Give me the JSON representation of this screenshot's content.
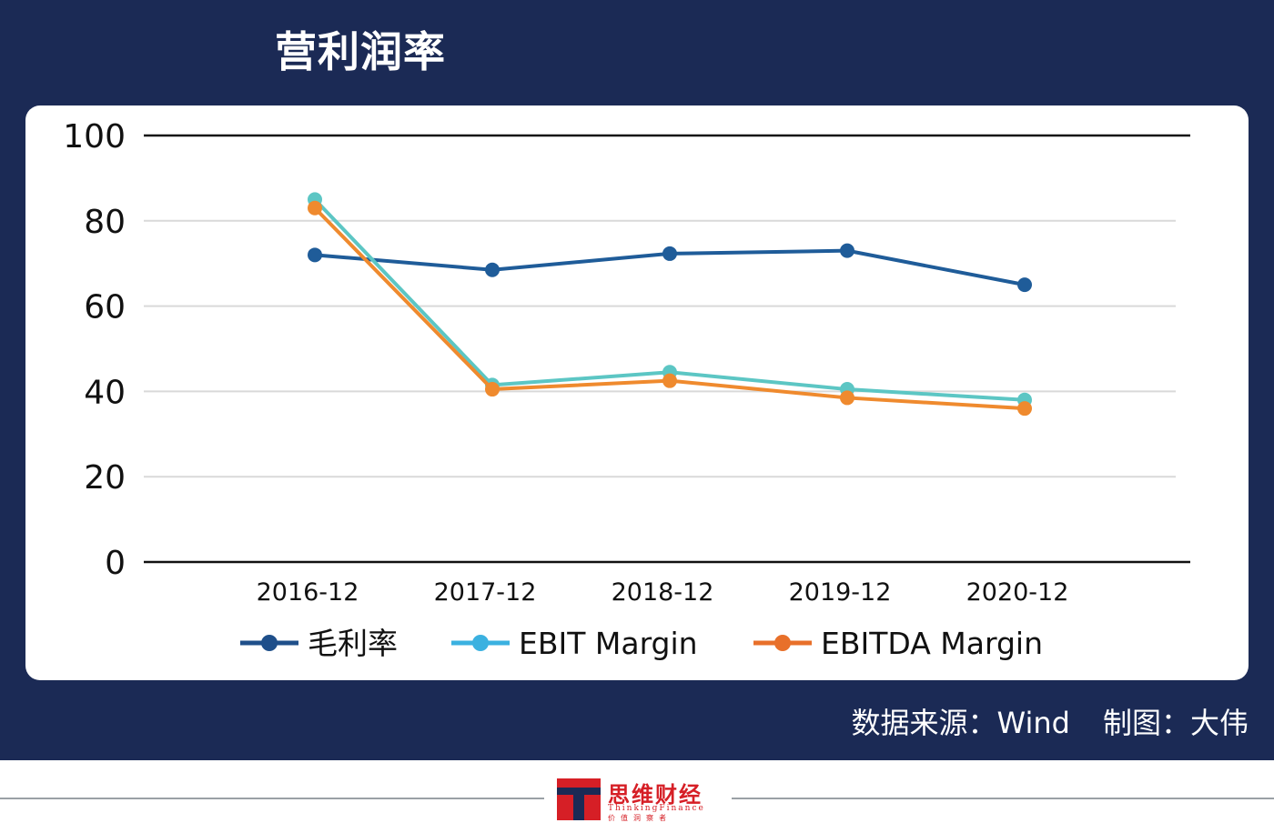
{
  "header": {
    "title": "营利润率"
  },
  "chart_data": {
    "type": "line",
    "categories": [
      "2016-12",
      "2017-12",
      "2018-12",
      "2019-12",
      "2020-12"
    ],
    "ylim": [
      0,
      100
    ],
    "yticks": [
      "0",
      "20",
      "40",
      "60",
      "80",
      "100"
    ],
    "grid": true,
    "legend_position": "bottom",
    "series": [
      {
        "name": "毛利率",
        "color": "#1f5c99",
        "values": [
          72,
          68.5,
          72.3,
          73,
          65
        ]
      },
      {
        "name": "EBIT Margin",
        "color": "#5cc6c4",
        "values": [
          85,
          41.5,
          44.5,
          40.5,
          38
        ]
      },
      {
        "name": "EBITDA Margin",
        "color": "#ef8a2e",
        "values": [
          83,
          40.5,
          42.5,
          38.5,
          36
        ]
      }
    ],
    "legend_colors": [
      "#1f4f8a",
      "#3bb1e0",
      "#e8702a"
    ]
  },
  "footer": {
    "source": "数据来源：Wind",
    "credit": "制图：大伟"
  },
  "logo": {
    "name": "思维财经",
    "english": "ThinkingFinance",
    "motto": "价值洞察者"
  }
}
